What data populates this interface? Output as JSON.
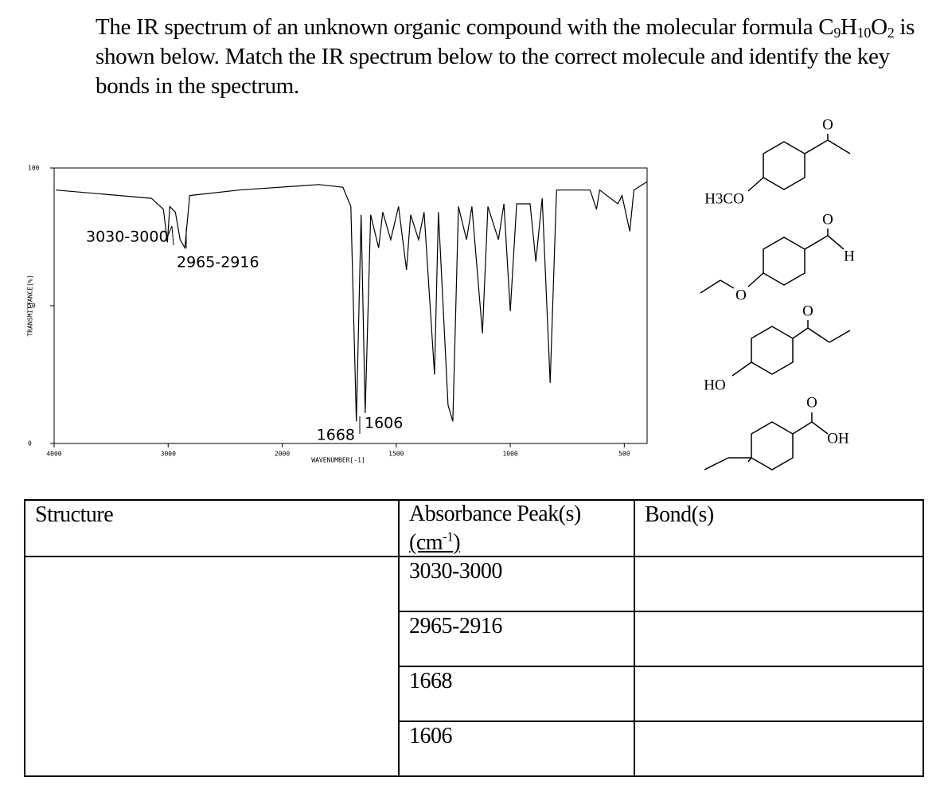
{
  "question": {
    "text_before": "The IR spectrum of an unknown organic compound with the molecular formula ",
    "formula": [
      "C",
      "9",
      "H",
      "10",
      "O",
      "2"
    ],
    "text_after": " is shown below. Match the IR spectrum below to the correct molecule and identify the key bonds in the spectrum."
  },
  "spectrum": {
    "xlabel": "WAVENUMBER[-1]",
    "ylabel": "TRANSMITTANCE[%]",
    "xlim": [
      4000,
      400
    ],
    "scale_break": 2000,
    "ylim": [
      0,
      100
    ],
    "xticks": [
      4000,
      3000,
      2000,
      1500,
      1000,
      500
    ],
    "yticks": [
      0,
      50,
      100
    ],
    "wavenumber": [
      3986,
      3427,
      3147,
      3042,
      3007,
      2986,
      2937,
      2895,
      2853,
      2811,
      2378,
      1839,
      1734,
      1699,
      1675,
      1654,
      1636,
      1612,
      1577,
      1559,
      1524,
      1490,
      1455,
      1437,
      1402,
      1378,
      1332,
      1315,
      1273,
      1252,
      1227,
      1192,
      1168,
      1122,
      1098,
      1052,
      1028,
      1000,
      972,
      913,
      888,
      860,
      825,
      797,
      650,
      622,
      608,
      528,
      510,
      476,
      458,
      400
    ],
    "transmittance": [
      92,
      90,
      89,
      85,
      73,
      86,
      84,
      74,
      71,
      90,
      92,
      94,
      93,
      86,
      8,
      83,
      11,
      83,
      71,
      84,
      74,
      86,
      63,
      83,
      74,
      84,
      25,
      84,
      14,
      8,
      86,
      74,
      86,
      40,
      86,
      74,
      87,
      48,
      87,
      87,
      66,
      89,
      22,
      92,
      92,
      85,
      92,
      87,
      90,
      77,
      92,
      95
    ],
    "annotations": [
      "3030-3000",
      "2965-2916",
      "1668",
      "1606"
    ]
  },
  "structures": [
    {
      "labels": [
        "O",
        "H3CO"
      ]
    },
    {
      "labels": [
        "O",
        "H",
        "O"
      ]
    },
    {
      "labels": [
        "O",
        "HO"
      ]
    },
    {
      "labels": [
        "O",
        "OH"
      ]
    }
  ],
  "table": {
    "headers": {
      "structure": "Structure",
      "peaks": "Absorbance Peak(s)",
      "unit_open": "(cm",
      "unit_exp": "-1",
      "unit_close": ")",
      "bonds": "Bond(s)"
    },
    "peaks": [
      "3030-3000",
      "2965-2916",
      "1668",
      "1606"
    ]
  }
}
